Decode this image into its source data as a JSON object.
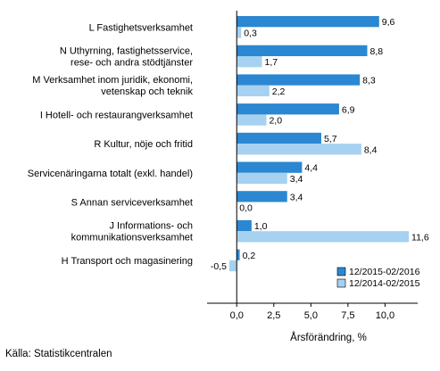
{
  "chart_data": {
    "type": "bar",
    "orientation": "horizontal",
    "categories": [
      [
        "L Fastighetsverksamhet"
      ],
      [
        "N Uthyrning, fastighetsservice,",
        "rese- och andra stödtjänster"
      ],
      [
        "M Verksamhet inom juridik, ekonomi,",
        "vetenskap och teknik"
      ],
      [
        "I Hotell- och restaurangverksamhet"
      ],
      [
        "R Kultur, nöje och fritid"
      ],
      [
        "Servicenäringarna totalt (exkl. handel)"
      ],
      [
        "S Annan serviceverksamhet"
      ],
      [
        "J Informations- och",
        "kommunikationsverksamhet"
      ],
      [
        "H Transport och magasinering"
      ]
    ],
    "series": [
      {
        "name": "12/2015-02/2016",
        "color": "#2b87d1",
        "values": [
          9.6,
          8.8,
          8.3,
          6.9,
          5.7,
          4.4,
          3.4,
          1.0,
          0.2
        ],
        "labels": [
          "9,6",
          "8,8",
          "8,3",
          "6,9",
          "5,7",
          "4,4",
          "3,4",
          "1,0",
          "0,2"
        ]
      },
      {
        "name": "12/2014-02/2015",
        "color": "#a6d1f0",
        "values": [
          0.3,
          1.7,
          2.2,
          2.0,
          8.4,
          3.4,
          0.0,
          11.6,
          -0.5
        ],
        "labels": [
          "0,3",
          "1,7",
          "2,2",
          "2,0",
          "8,4",
          "3,4",
          "0,0",
          "11,6",
          "-0,5"
        ]
      }
    ],
    "xlim": [
      -2.0,
      12.2
    ],
    "xticks": [
      0,
      2.5,
      5,
      7.5,
      10
    ],
    "xtick_labels": [
      "0,0",
      "2,5",
      "5,0",
      "7,5",
      "10,0"
    ],
    "xlabel": "Årsförändring, %",
    "grid": false,
    "legend_position": "bottom-right"
  },
  "source": "Källa: Statistikcentralen"
}
